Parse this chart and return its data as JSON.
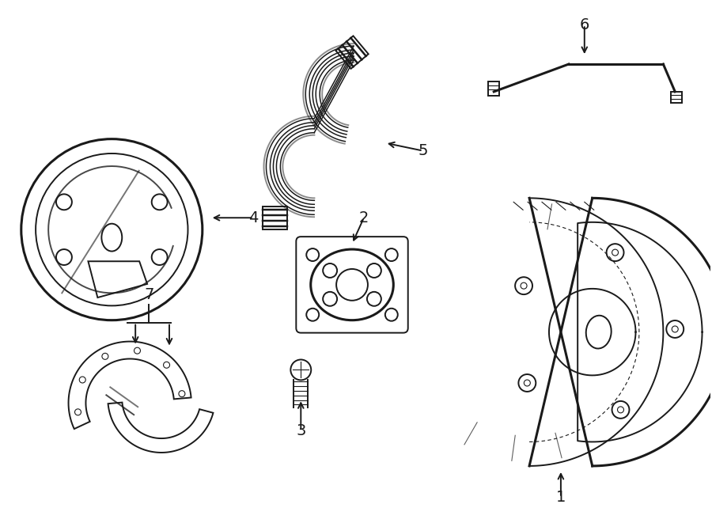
{
  "bg_color": "#ffffff",
  "line_color": "#1a1a1a",
  "lw": 1.4,
  "lw_thick": 2.2,
  "lw_thin": 0.8,
  "label_fontsize": 14,
  "figsize": [
    9.0,
    6.61
  ],
  "dpi": 100
}
